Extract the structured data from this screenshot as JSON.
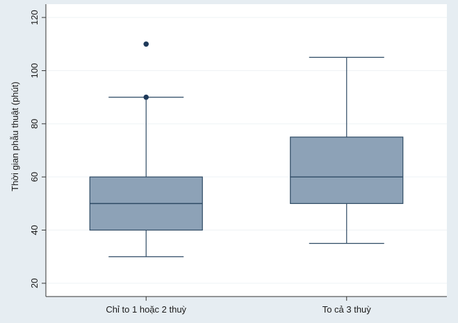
{
  "colors": {
    "background": "#e6edf2",
    "plot_background": "#ffffff",
    "box_fill": "#8da2b7",
    "box_stroke": "#2e4a64",
    "outlier": "#1f3a5a",
    "grid": "#eef2f5"
  },
  "chart_data": {
    "type": "box",
    "title": "",
    "xlabel": "",
    "ylabel": "Thời gian phẫu thuật (phút)",
    "ylim": [
      15,
      125
    ],
    "yticks": [
      20,
      40,
      60,
      80,
      100,
      120
    ],
    "ytick_labels": [
      "20",
      "40",
      "60",
      "80",
      "100",
      "120"
    ],
    "grid": true,
    "categories": [
      "Chỉ to 1 hoặc 2 thuỳ",
      "To cả 3 thuỳ"
    ],
    "boxes": [
      {
        "whisker_low": 30,
        "q1": 40,
        "median": 50,
        "q3": 60,
        "whisker_high": 90,
        "outliers": [
          90,
          110
        ]
      },
      {
        "whisker_low": 35,
        "q1": 50,
        "median": 60,
        "q3": 75,
        "whisker_high": 105,
        "outliers": []
      }
    ]
  }
}
